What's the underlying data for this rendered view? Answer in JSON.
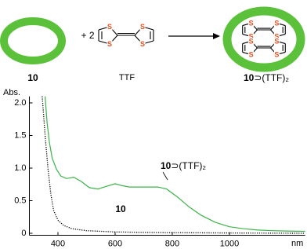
{
  "scheme": {
    "host_label": "10",
    "plus": "+ 2",
    "atom": "S",
    "guest_label": "TTF",
    "complex_label": {
      "host": "10",
      "rest": "⊃(TTF)₂"
    },
    "ring_color": "#5cc13a"
  },
  "chart_data": {
    "type": "line",
    "y_label": "Abs.",
    "x_label": "nm",
    "xlim": [
      300,
      1265
    ],
    "xticks": [
      400,
      600,
      800,
      1000
    ],
    "ylim": [
      -0.03,
      2.1
    ],
    "yticks": [
      0,
      0.5,
      {
        "value": 1,
        "label": "1.0"
      },
      1.5,
      {
        "value": 2,
        "label": "2.0"
      }
    ],
    "series": [
      {
        "name": {
          "host": "10",
          "rest": "⊃(TTF)₂"
        },
        "color": "#3cb34a",
        "dash": false,
        "x": [
          355,
          362,
          370,
          380,
          395,
          410,
          430,
          455,
          480,
          510,
          540,
          570,
          600,
          625,
          650,
          700,
          750,
          780,
          820,
          860,
          900,
          950,
          1000,
          1050,
          1100,
          1150,
          1200,
          1265
        ],
        "values": [
          2.1,
          1.7,
          1.4,
          1.15,
          0.98,
          0.88,
          0.84,
          0.86,
          0.8,
          0.7,
          0.68,
          0.72,
          0.76,
          0.73,
          0.71,
          0.71,
          0.71,
          0.68,
          0.55,
          0.4,
          0.28,
          0.17,
          0.1,
          0.07,
          0.05,
          0.04,
          0.035,
          0.03
        ]
      },
      {
        "name": {
          "host": "10"
        },
        "color": "#000000",
        "dash": true,
        "x": [
          345,
          355,
          365,
          375,
          385,
          400,
          420,
          450,
          500,
          600,
          700,
          800,
          1000,
          1265
        ],
        "values": [
          2.1,
          1.5,
          1.0,
          0.6,
          0.35,
          0.2,
          0.12,
          0.07,
          0.04,
          0.02,
          0.015,
          0.01,
          0.005,
          0.0
        ]
      }
    ]
  }
}
